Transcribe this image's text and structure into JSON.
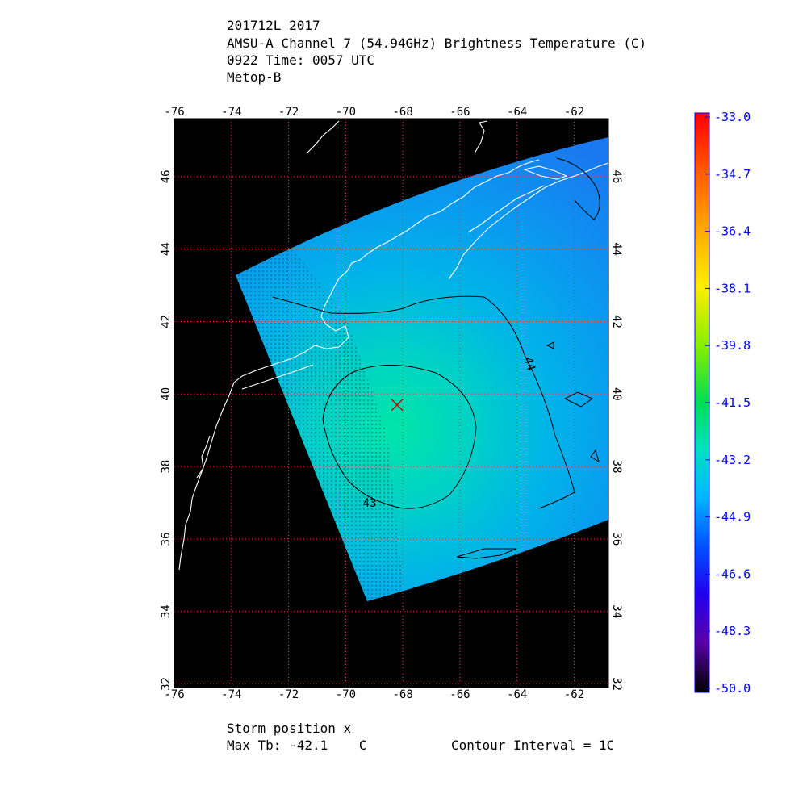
{
  "header": {
    "line1": "201712L 2017",
    "line2": "AMSU-A Channel 7 (54.94GHz) Brightness Temperature (C)",
    "line3": "0922 Time: 0057 UTC",
    "line4": "Metop-B"
  },
  "map": {
    "lon_range": [
      -76,
      -60.8
    ],
    "lat_range": [
      31.9,
      47.6
    ],
    "lon_ticks": [
      "-76",
      "-74",
      "-72",
      "-70",
      "-68",
      "-66",
      "-64",
      "-62"
    ],
    "lon_tick_values": [
      -76,
      -74,
      -72,
      -70,
      -68,
      -66,
      -64,
      -62
    ],
    "lat_ticks": [
      "32",
      "34",
      "36",
      "38",
      "40",
      "42",
      "44",
      "46"
    ],
    "lat_tick_values": [
      32,
      34,
      36,
      38,
      40,
      42,
      44,
      46
    ],
    "contour_labels": [
      "43",
      "44"
    ],
    "storm_position": {
      "lon": -68.2,
      "lat": 39.7
    },
    "grid": "dotted red",
    "background": "#000000"
  },
  "colorbar": {
    "labels": [
      "-33.0",
      "-34.7",
      "-36.4",
      "-38.1",
      "-39.8",
      "-41.5",
      "-43.2",
      "-44.9",
      "-46.6",
      "-48.3",
      "-50.0"
    ],
    "range": [
      -50.0,
      -33.0
    ],
    "label_color": "#0000ff"
  },
  "footer": {
    "storm_position_label": "Storm position x",
    "max_tb_label": "Max Tb: -42.1    C",
    "contour_interval": "Contour Interval = 1C"
  }
}
